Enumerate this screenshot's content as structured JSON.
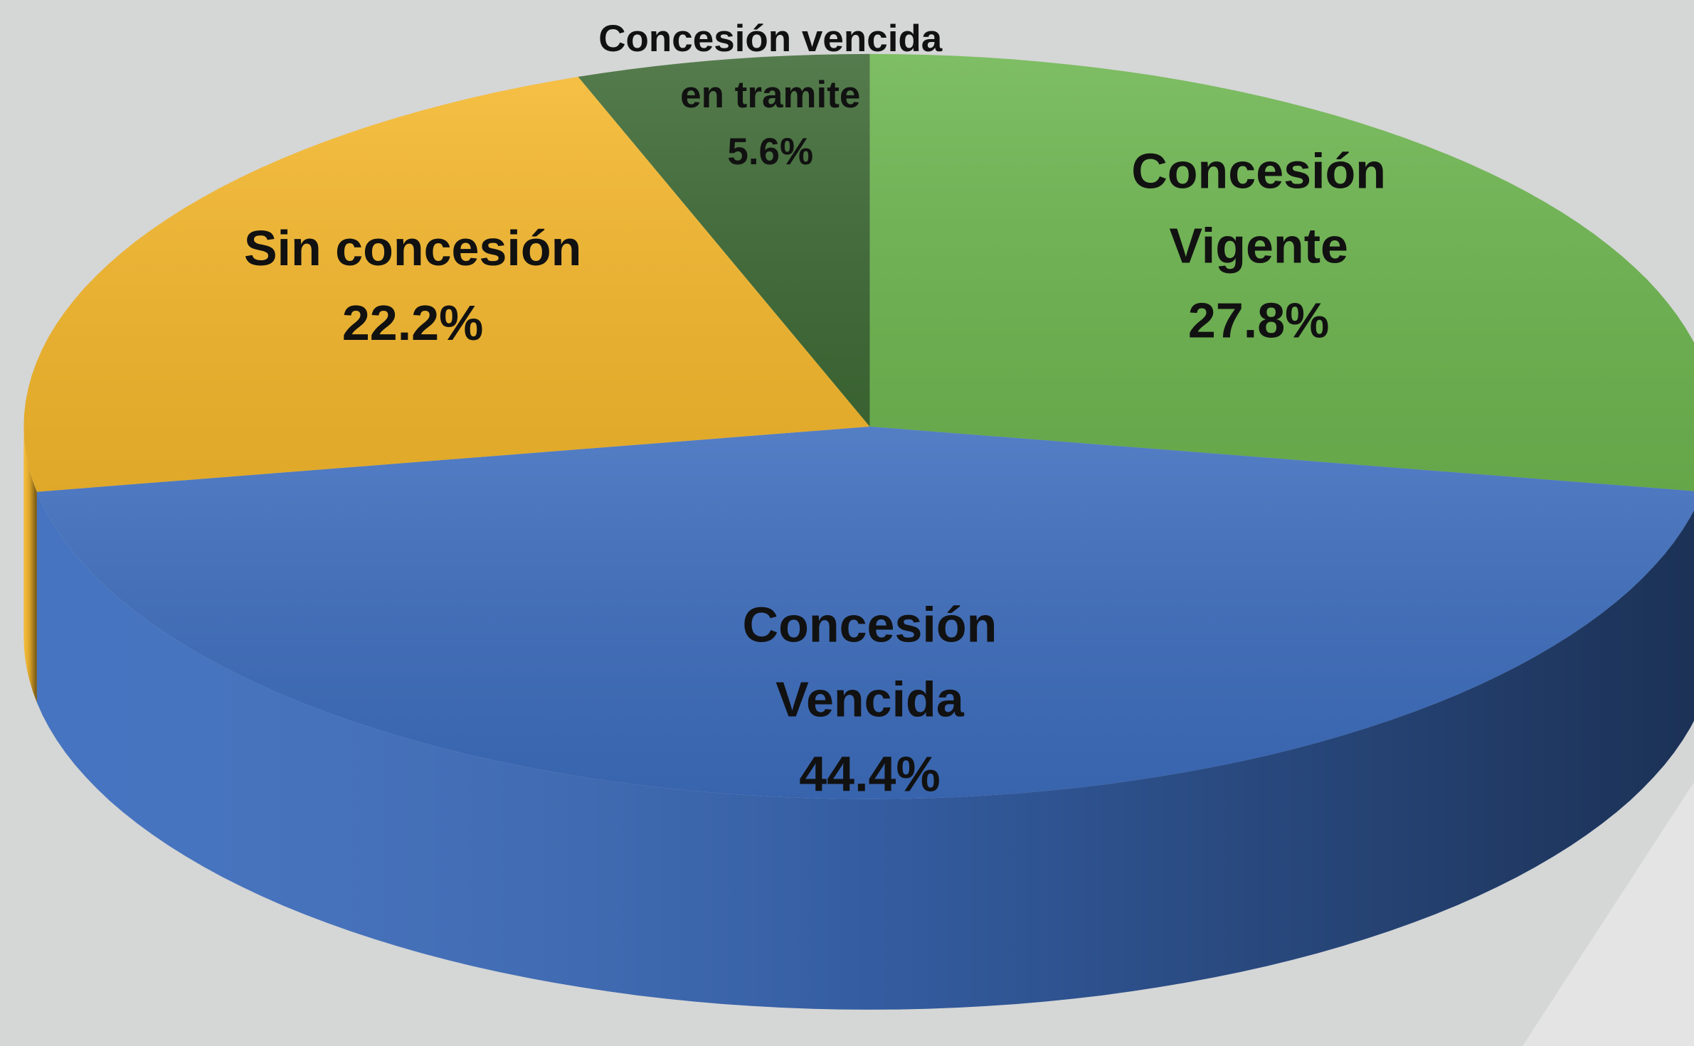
{
  "chart_data": {
    "type": "pie",
    "categories": [
      "Concesión\nVigente",
      "Concesión\nVencida",
      "Sin concesión",
      "Concesión vencida\nen tramite"
    ],
    "values": [
      27.8,
      44.4,
      22.2,
      5.6
    ],
    "value_labels": [
      "27.8%",
      "44.4%",
      "22.2%",
      "5.6%"
    ],
    "colors": [
      "#6db54f",
      "#3d6dbd",
      "#f4b72c",
      "#3e6a35"
    ]
  }
}
